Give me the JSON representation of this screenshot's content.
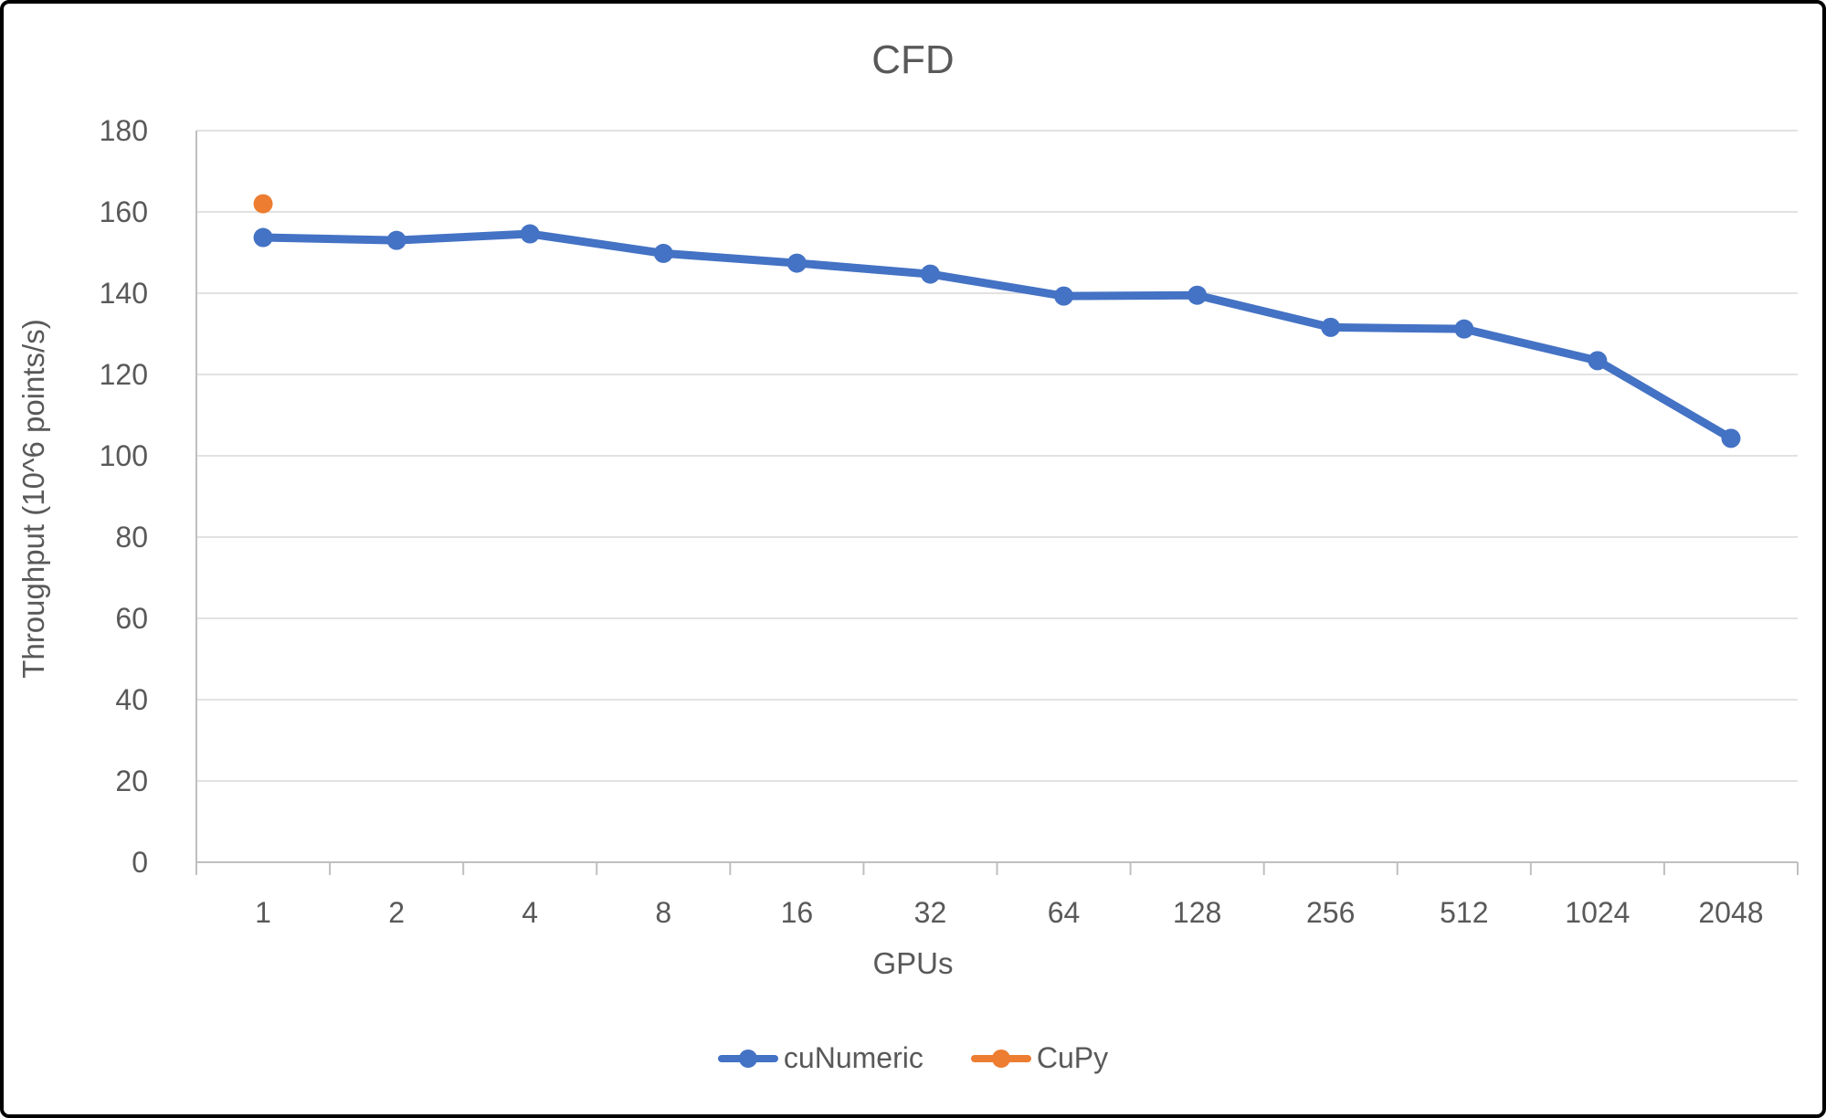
{
  "title": "CFD",
  "colors": {
    "cuNumeric": "#4472C4",
    "CuPy": "#ED7D31",
    "text": "#595959",
    "gridline": "#D9D9D9",
    "axis": "#BFBFBF"
  },
  "chart_data": {
    "type": "line",
    "title": "CFD",
    "categories": [
      "1",
      "2",
      "4",
      "8",
      "16",
      "32",
      "64",
      "128",
      "256",
      "512",
      "1024",
      "2048"
    ],
    "series": [
      {
        "name": "cuNumeric",
        "color": "#4472C4",
        "values": [
          153.7,
          153.0,
          154.6,
          149.8,
          147.4,
          144.7,
          139.3,
          139.5,
          131.6,
          131.2,
          123.4,
          104.3
        ]
      },
      {
        "name": "CuPy",
        "color": "#ED7D31",
        "values": [
          162,
          null,
          null,
          null,
          null,
          null,
          null,
          null,
          null,
          null,
          null,
          null
        ]
      }
    ],
    "xlabel": "GPUs",
    "ylabel": "Throughput (10^6 points/s)",
    "ylim": [
      0,
      180
    ],
    "ytick_step": 20,
    "grid": "horizontal",
    "legend_position": "bottom"
  },
  "legend": {
    "items": [
      {
        "label": "cuNumeric",
        "color": "#4472C4"
      },
      {
        "label": "CuPy",
        "color": "#ED7D31"
      }
    ]
  }
}
